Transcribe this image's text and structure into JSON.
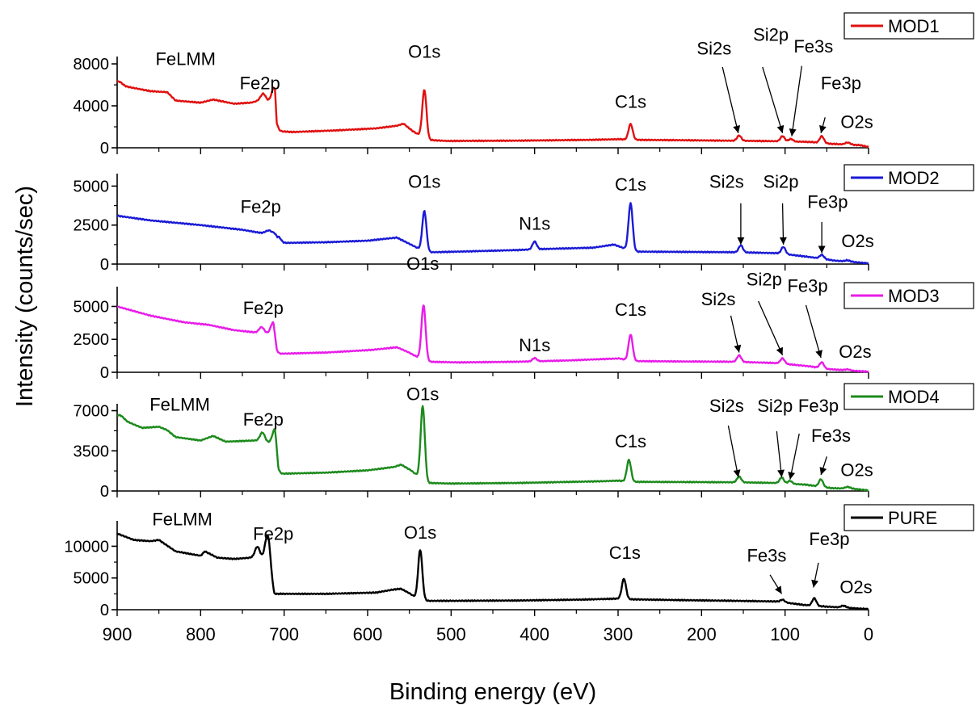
{
  "chart_data": {
    "type": "line",
    "xlabel": "Binding energy (eV)",
    "ylabel": "Intensity (counts/sec)",
    "xlim": [
      900,
      0
    ],
    "x_ticks": [
      900,
      800,
      700,
      600,
      500,
      400,
      300,
      200,
      100,
      0
    ],
    "panels": [
      {
        "name": "MOD1",
        "color": "#e01010",
        "ylim": [
          0,
          8700
        ],
        "y_ticks": [
          0,
          4000,
          8000
        ],
        "baseline": [
          [
            900,
            6000
          ],
          [
            860,
            5400
          ],
          [
            840,
            5300
          ],
          [
            830,
            4500
          ],
          [
            800,
            4300
          ],
          [
            785,
            4600
          ],
          [
            760,
            4200
          ],
          [
            740,
            4300
          ],
          [
            730,
            4500
          ],
          [
            718,
            4400
          ],
          [
            711,
            4300
          ],
          [
            709,
            1600
          ],
          [
            690,
            1500
          ],
          [
            640,
            1650
          ],
          [
            590,
            1850
          ],
          [
            565,
            2100
          ],
          [
            557,
            2300
          ],
          [
            547,
            1650
          ],
          [
            540,
            1300
          ],
          [
            528,
            750
          ],
          [
            505,
            650
          ],
          [
            420,
            680
          ],
          [
            330,
            760
          ],
          [
            298,
            820
          ],
          [
            285,
            760
          ],
          [
            220,
            720
          ],
          [
            170,
            680
          ],
          [
            120,
            640
          ],
          [
            70,
            560
          ],
          [
            45,
            380
          ],
          [
            25,
            300
          ],
          [
            10,
            250
          ],
          [
            0,
            80
          ]
        ],
        "peaks": [
          [
            898,
            350,
            4
          ],
          [
            725,
            700,
            3
          ],
          [
            712,
            1400,
            3
          ],
          [
            532,
            4600,
            2.5
          ],
          [
            285,
            1500,
            2.5
          ],
          [
            155,
            500,
            2.5
          ],
          [
            103,
            500,
            2.5
          ],
          [
            93,
            250,
            2.5
          ],
          [
            56,
            650,
            2.5
          ],
          [
            25,
            200,
            3
          ]
        ],
        "annotations": [
          {
            "text": "FeLMM",
            "tx": 818,
            "ty": 7900
          },
          {
            "text": "Fe2p",
            "tx": 729,
            "ty": 5600
          },
          {
            "text": "O1s",
            "tx": 532,
            "ty": 8600
          },
          {
            "text": "C1s",
            "tx": 285,
            "ty": 3800
          },
          {
            "text": "Si2s",
            "tx": 185,
            "ty": 8900,
            "ax": 175,
            "ay": 7700,
            "px": 156,
            "py": 1400
          },
          {
            "text": "Si2p",
            "tx": 117,
            "ty": 10200,
            "ax": 127,
            "ay": 7700,
            "px": 103,
            "py": 1400
          },
          {
            "text": "Fe3s",
            "tx": 66,
            "ty": 9100,
            "ax": 80,
            "ay": 7800,
            "px": 92,
            "py": 1100
          },
          {
            "text": "Fe3p",
            "tx": 33,
            "ty": 5600,
            "ax": 52,
            "ay": 2900,
            "px": 57,
            "py": 1400
          },
          {
            "text": "O2s",
            "tx": 14,
            "ty": 1900
          }
        ]
      },
      {
        "name": "MOD2",
        "color": "#1a1ad6",
        "ylim": [
          0,
          5800
        ],
        "y_ticks": [
          0,
          2500,
          5000
        ],
        "baseline": [
          [
            900,
            3100
          ],
          [
            860,
            2800
          ],
          [
            800,
            2500
          ],
          [
            750,
            2200
          ],
          [
            712,
            1850
          ],
          [
            708,
            1350
          ],
          [
            650,
            1400
          ],
          [
            600,
            1500
          ],
          [
            565,
            1700
          ],
          [
            550,
            1300
          ],
          [
            530,
            750
          ],
          [
            490,
            800
          ],
          [
            420,
            900
          ],
          [
            400,
            950
          ],
          [
            330,
            1050
          ],
          [
            305,
            1250
          ],
          [
            292,
            1000
          ],
          [
            280,
            800
          ],
          [
            220,
            780
          ],
          [
            160,
            760
          ],
          [
            110,
            700
          ],
          [
            70,
            450
          ],
          [
            40,
            220
          ],
          [
            15,
            120
          ],
          [
            0,
            50
          ]
        ],
        "peaks": [
          [
            718,
            250,
            4
          ],
          [
            707,
            400,
            3
          ],
          [
            532,
            2600,
            2.5
          ],
          [
            400,
            500,
            2.5
          ],
          [
            285,
            3000,
            2.5
          ],
          [
            153,
            450,
            2.5
          ],
          [
            102,
            450,
            2.5
          ],
          [
            56,
            250,
            2.5
          ],
          [
            25,
            80,
            3
          ]
        ],
        "annotations": [
          {
            "text": "Fe2p",
            "tx": 728,
            "ty": 3300
          },
          {
            "text": "O1s",
            "tx": 532,
            "ty": 4900
          },
          {
            "text": "N1s",
            "tx": 400,
            "ty": 2200
          },
          {
            "text": "C1s",
            "tx": 285,
            "ty": 4700
          },
          {
            "text": "Si2s",
            "tx": 170,
            "ty": 4900,
            "ax": 153,
            "ay": 3900,
            "px": 153,
            "py": 1250
          },
          {
            "text": "Si2p",
            "tx": 105,
            "ty": 4900,
            "ax": 103,
            "ay": 3900,
            "px": 102,
            "py": 1250
          },
          {
            "text": "Fe3p",
            "tx": 49,
            "ty": 3600,
            "ax": 56,
            "ay": 2700,
            "px": 56,
            "py": 700
          },
          {
            "text": "O2s",
            "tx": 13,
            "ty": 1100
          }
        ]
      },
      {
        "name": "MOD3",
        "color": "#e81ce8",
        "ylim": [
          0,
          6500
        ],
        "y_ticks": [
          0,
          2500,
          5000
        ],
        "baseline": [
          [
            900,
            5000
          ],
          [
            860,
            4300
          ],
          [
            820,
            3800
          ],
          [
            790,
            3600
          ],
          [
            760,
            3200
          ],
          [
            730,
            3000
          ],
          [
            713,
            2900
          ],
          [
            709,
            1400
          ],
          [
            650,
            1500
          ],
          [
            595,
            1700
          ],
          [
            565,
            1900
          ],
          [
            552,
            1550
          ],
          [
            530,
            800
          ],
          [
            490,
            750
          ],
          [
            420,
            800
          ],
          [
            360,
            900
          ],
          [
            320,
            1000
          ],
          [
            298,
            1050
          ],
          [
            285,
            850
          ],
          [
            220,
            820
          ],
          [
            160,
            800
          ],
          [
            110,
            700
          ],
          [
            70,
            450
          ],
          [
            50,
            250
          ],
          [
            20,
            120
          ],
          [
            0,
            50
          ]
        ],
        "peaks": [
          [
            727,
            450,
            3
          ],
          [
            713,
            900,
            3
          ],
          [
            533,
            4200,
            2.5
          ],
          [
            400,
            250,
            2.5
          ],
          [
            285,
            2000,
            2.5
          ],
          [
            155,
            500,
            2.5
          ],
          [
            103,
            400,
            2.5
          ],
          [
            56,
            450,
            2.5
          ],
          [
            25,
            80,
            3
          ]
        ],
        "annotations": [
          {
            "text": "Fe2p",
            "tx": 725,
            "ty": 4400
          },
          {
            "text": "O1s",
            "tx": 534,
            "ty": 7800
          },
          {
            "text": "N1s",
            "tx": 400,
            "ty": 1600
          },
          {
            "text": "C1s",
            "tx": 285,
            "ty": 4300
          },
          {
            "text": "Si2s",
            "tx": 180,
            "ty": 5100,
            "ax": 165,
            "ay": 4300,
            "px": 155,
            "py": 1500
          },
          {
            "text": "Si2p",
            "tx": 125,
            "ty": 6600,
            "ax": 132,
            "ay": 5400,
            "px": 103,
            "py": 1300
          },
          {
            "text": "Fe3p",
            "tx": 73,
            "ty": 6100,
            "ax": 75,
            "ay": 5100,
            "px": 57,
            "py": 1100
          },
          {
            "text": "O2s",
            "tx": 16,
            "ty": 1100
          }
        ]
      },
      {
        "name": "MOD4",
        "color": "#1c8a1c",
        "ylim": [
          0,
          7600
        ],
        "y_ticks": [
          0,
          3500,
          7000
        ],
        "baseline": [
          [
            900,
            6400
          ],
          [
            870,
            5500
          ],
          [
            850,
            5600
          ],
          [
            840,
            5300
          ],
          [
            830,
            4700
          ],
          [
            800,
            4400
          ],
          [
            785,
            4800
          ],
          [
            770,
            4300
          ],
          [
            735,
            4400
          ],
          [
            718,
            4200
          ],
          [
            711,
            4100
          ],
          [
            707,
            1500
          ],
          [
            650,
            1600
          ],
          [
            600,
            1800
          ],
          [
            568,
            2100
          ],
          [
            560,
            2300
          ],
          [
            548,
            1800
          ],
          [
            538,
            1200
          ],
          [
            528,
            700
          ],
          [
            500,
            650
          ],
          [
            420,
            700
          ],
          [
            320,
            850
          ],
          [
            300,
            900
          ],
          [
            285,
            800
          ],
          [
            220,
            780
          ],
          [
            160,
            760
          ],
          [
            110,
            700
          ],
          [
            75,
            550
          ],
          [
            45,
            250
          ],
          [
            20,
            200
          ],
          [
            0,
            60
          ]
        ],
        "peaks": [
          [
            896,
            300,
            4
          ],
          [
            726,
            800,
            3
          ],
          [
            711,
            1300,
            3
          ],
          [
            534,
            6400,
            2.5
          ],
          [
            287,
            1900,
            2.5
          ],
          [
            155,
            500,
            2.5
          ],
          [
            104,
            500,
            2.5
          ],
          [
            94,
            250,
            2.5
          ],
          [
            57,
            650,
            2.5
          ],
          [
            25,
            150,
            3
          ]
        ],
        "annotations": [
          {
            "text": "FeLMM",
            "tx": 825,
            "ty": 7000
          },
          {
            "text": "Fe2p",
            "tx": 725,
            "ty": 5700
          },
          {
            "text": "O1s",
            "tx": 534,
            "ty": 7900
          },
          {
            "text": "C1s",
            "tx": 285,
            "ty": 3800
          },
          {
            "text": "Si2s",
            "tx": 170,
            "ty": 6900,
            "ax": 168,
            "ay": 5700,
            "px": 156,
            "py": 1200
          },
          {
            "text": "Si2p",
            "tx": 112,
            "ty": 6900,
            "ax": 110,
            "ay": 5200,
            "px": 104,
            "py": 1200
          },
          {
            "text": "Fe3p",
            "tx": 60,
            "ty": 6900,
            "ax": 83,
            "ay": 5000,
            "px": 94,
            "py": 1000
          },
          {
            "text": "Fe3s",
            "tx": 45,
            "ty": 4300,
            "ax": 50,
            "ay": 3000,
            "px": 57,
            "py": 1400
          },
          {
            "text": "O2s",
            "tx": 14,
            "ty": 1300
          }
        ]
      },
      {
        "name": "PURE",
        "color": "#000000",
        "ylim": [
          0,
          14000
        ],
        "y_ticks": [
          0,
          5000,
          10000
        ],
        "baseline": [
          [
            900,
            12000
          ],
          [
            880,
            11000
          ],
          [
            860,
            10800
          ],
          [
            850,
            11000
          ],
          [
            830,
            9200
          ],
          [
            800,
            8500
          ],
          [
            795,
            9200
          ],
          [
            780,
            8200
          ],
          [
            760,
            8000
          ],
          [
            740,
            8200
          ],
          [
            730,
            8100
          ],
          [
            718,
            7800
          ],
          [
            712,
            2500
          ],
          [
            650,
            2500
          ],
          [
            590,
            2700
          ],
          [
            568,
            3200
          ],
          [
            560,
            3300
          ],
          [
            550,
            2600
          ],
          [
            540,
            1700
          ],
          [
            528,
            1400
          ],
          [
            500,
            1400
          ],
          [
            420,
            1450
          ],
          [
            340,
            1600
          ],
          [
            300,
            1750
          ],
          [
            290,
            1650
          ],
          [
            220,
            1500
          ],
          [
            160,
            1400
          ],
          [
            110,
            1300
          ],
          [
            80,
            800
          ],
          [
            70,
            650
          ],
          [
            45,
            450
          ],
          [
            20,
            250
          ],
          [
            0,
            100
          ]
        ],
        "peaks": [
          [
            732,
            1800,
            3
          ],
          [
            720,
            3800,
            3
          ],
          [
            537,
            7800,
            2.5
          ],
          [
            293,
            3200,
            2.5
          ],
          [
            103,
            400,
            2.5
          ],
          [
            65,
            1200,
            2.5
          ],
          [
            30,
            300,
            3
          ]
        ],
        "annotations": [
          {
            "text": "FeLMM",
            "tx": 822,
            "ty": 13300
          },
          {
            "text": "Fe2p",
            "tx": 713,
            "ty": 11000
          },
          {
            "text": "O1s",
            "tx": 537,
            "ty": 11200
          },
          {
            "text": "C1s",
            "tx": 292,
            "ty": 8000
          },
          {
            "text": "Fe3s",
            "tx": 122,
            "ty": 7600,
            "ax": 118,
            "ay": 5500,
            "px": 104,
            "py": 2500
          },
          {
            "text": "Fe3p",
            "tx": 47,
            "ty": 10200,
            "ax": 60,
            "ay": 7400,
            "px": 66,
            "py": 3500
          },
          {
            "text": "O2s",
            "tx": 15,
            "ty": 2600
          }
        ]
      }
    ]
  }
}
